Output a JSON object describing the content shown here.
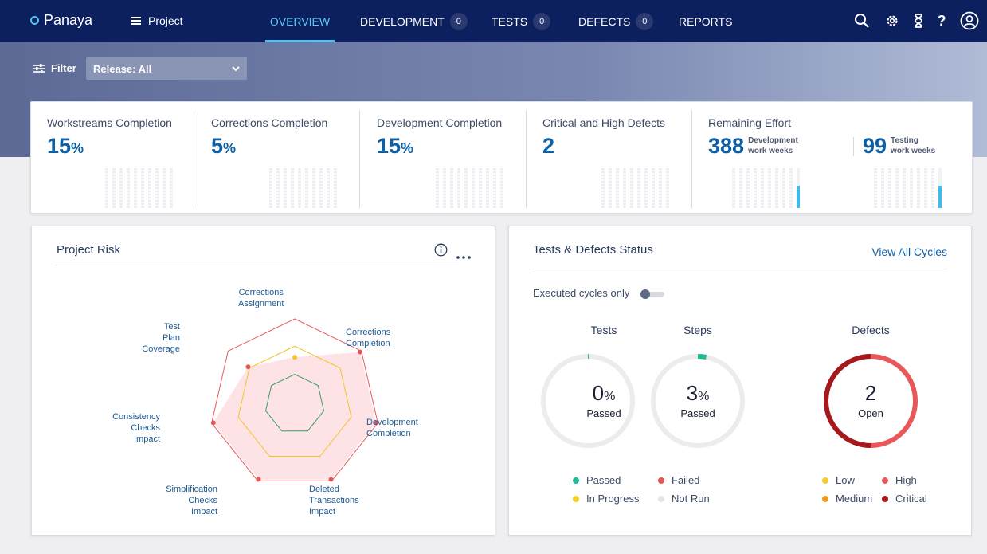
{
  "app": {
    "logo": "Panaya",
    "project_label": "Project"
  },
  "nav": {
    "tabs": [
      {
        "label": "OVERVIEW",
        "badge": null,
        "active": true
      },
      {
        "label": "DEVELOPMENT",
        "badge": "0",
        "active": false
      },
      {
        "label": "TESTS",
        "badge": "0",
        "active": false
      },
      {
        "label": "DEFECTS",
        "badge": "0",
        "active": false
      },
      {
        "label": "REPORTS",
        "badge": null,
        "active": false
      }
    ],
    "icons": [
      "search-icon",
      "gear-icon",
      "hourglass-icon",
      "help-icon",
      "user-icon"
    ]
  },
  "filter": {
    "label": "Filter",
    "release_value": "Release: All"
  },
  "kpis": [
    {
      "title": "Workstreams Completion",
      "value": "15",
      "unit": "%"
    },
    {
      "title": "Corrections Completion",
      "value": "5",
      "unit": "%"
    },
    {
      "title": "Development Completion",
      "value": "15",
      "unit": "%"
    },
    {
      "title": "Critical and High Defects",
      "value": "2",
      "unit": ""
    },
    {
      "title": "Remaining Effort",
      "dev_value": "388",
      "dev_label_1": "Development",
      "dev_label_2": "work weeks",
      "test_value": "99",
      "test_label_1": "Testing",
      "test_label_2": "work weeks"
    }
  ],
  "project_risk": {
    "title": "Project Risk",
    "axes": [
      "Corrections Assignment",
      "Corrections Completion",
      "Development Completion",
      "Deleted Transactions Impact",
      "Simplification Checks Impact",
      "Consistency Checks Impact",
      "Test Plan Coverage"
    ],
    "labels": {
      "a0": [
        "Corrections",
        "Assignment"
      ],
      "a1": [
        "Corrections",
        "Completion"
      ],
      "a2": [
        "Development",
        "Completion"
      ],
      "a3": [
        "Deleted",
        "Transactions",
        "Impact"
      ],
      "a4": [
        "Simplification",
        "Checks",
        "Impact"
      ],
      "a5": [
        "Consistency",
        "Checks",
        "Impact"
      ],
      "a6": [
        "Test",
        "Plan",
        "Coverage"
      ]
    },
    "series_values": [
      0.55,
      0.98,
      0.98,
      0.98,
      0.98,
      0.98,
      0.7
    ],
    "levels": {
      "low": 0.35,
      "medium": 0.68,
      "high": 1.0
    },
    "colors": {
      "high": "#e8585a",
      "medium": "#f2c42a",
      "low": "#3d9e6a",
      "fill": "#fde3e5"
    }
  },
  "tests_defects": {
    "title": "Tests & Defects Status",
    "view_all": "View All Cycles",
    "toggle_label": "Executed cycles only",
    "tests": {
      "heading": "Tests",
      "value": "0",
      "unit": "%",
      "sub": "Passed",
      "passed_fraction": 0.0
    },
    "steps": {
      "heading": "Steps",
      "value": "3",
      "unit": "%",
      "sub": "Passed",
      "passed_fraction": 0.03
    },
    "defects": {
      "heading": "Defects",
      "value": "2",
      "sub": "Open",
      "critical_fraction": 0.5
    },
    "test_legend": [
      {
        "label": "Passed",
        "color": "#1cba95"
      },
      {
        "label": "Failed",
        "color": "#e8585a"
      },
      {
        "label": "In Progress",
        "color": "#f2cc2b"
      },
      {
        "label": "Not Run",
        "color": "#e6e6e6"
      }
    ],
    "defect_legend": [
      {
        "label": "Low",
        "color": "#f2cc2b"
      },
      {
        "label": "High",
        "color": "#e8585a"
      },
      {
        "label": "Medium",
        "color": "#ef9a1d"
      },
      {
        "label": "Critical",
        "color": "#a5181c"
      }
    ]
  }
}
